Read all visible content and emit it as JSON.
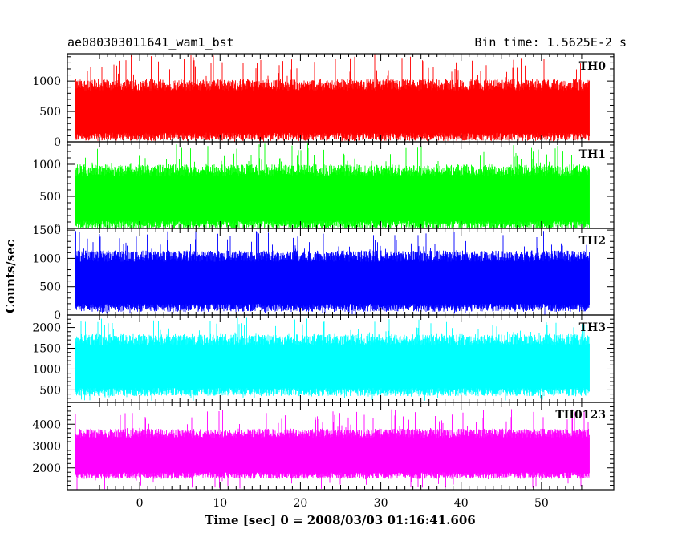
{
  "chart_data": {
    "type": "line",
    "title_left": "ae080303011641_wam1_bst",
    "title_right": "Bin time: 1.5625E-2 s",
    "xlabel": "Time [sec] 0 = 2008/03/03 01:16:41.606",
    "ylabel": "Counts/sec",
    "xlim": [
      -9,
      59
    ],
    "x_ticks": [
      0,
      10,
      20,
      30,
      40,
      50
    ],
    "data_x_range": [
      -8,
      56
    ],
    "grid": false,
    "panels": [
      {
        "name": "TH0",
        "color": "#ff0000",
        "ylim": [
          0,
          1450
        ],
        "y_ticks": [
          0,
          500,
          1000
        ],
        "typical_range": [
          150,
          900
        ],
        "spike_max": 1450,
        "dip_min": 0
      },
      {
        "name": "TH1",
        "color": "#00ff00",
        "ylim": [
          0,
          1350
        ],
        "y_ticks": [
          0,
          500,
          1000
        ],
        "typical_range": [
          120,
          870
        ],
        "spike_max": 1330,
        "dip_min": 0
      },
      {
        "name": "TH2",
        "color": "#0000ff",
        "ylim": [
          0,
          1530
        ],
        "y_ticks": [
          0,
          500,
          1000,
          1500
        ],
        "typical_range": [
          200,
          1000
        ],
        "spike_max": 1530,
        "dip_min": 0
      },
      {
        "name": "TH3",
        "color": "#00ffff",
        "ylim": [
          200,
          2300
        ],
        "y_ticks": [
          500,
          1000,
          1500,
          2000
        ],
        "typical_range": [
          550,
          1650
        ],
        "spike_max": 2250,
        "dip_min": 230
      },
      {
        "name": "TH0123",
        "color": "#ff00ff",
        "ylim": [
          1000,
          5000
        ],
        "y_ticks": [
          2000,
          3000,
          4000
        ],
        "typical_range": [
          1800,
          3500
        ],
        "spike_max": 4800,
        "dip_min": 1000
      }
    ]
  }
}
